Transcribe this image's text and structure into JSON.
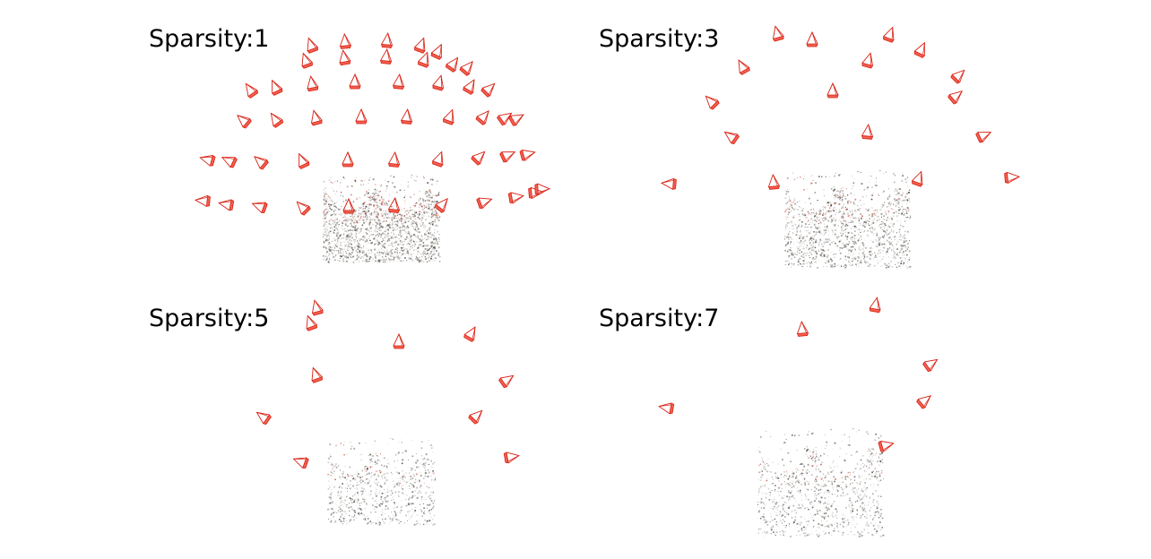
{
  "colors": {
    "camera_fill": "#f2604f",
    "camera_stroke": "#d91f12",
    "points_dark": "#555555",
    "points_red": "#c8503c"
  },
  "panels": [
    {
      "title": "Sparsity:1",
      "sparsity": 1,
      "point_cloud_density": "dense"
    },
    {
      "title": "Sparsity:3",
      "sparsity": 3,
      "point_cloud_density": "medium"
    },
    {
      "title": "Sparsity:5",
      "sparsity": 5,
      "point_cloud_density": "sparse"
    },
    {
      "title": "Sparsity:7",
      "sparsity": 7,
      "point_cloud_density": "sparse"
    }
  ]
}
